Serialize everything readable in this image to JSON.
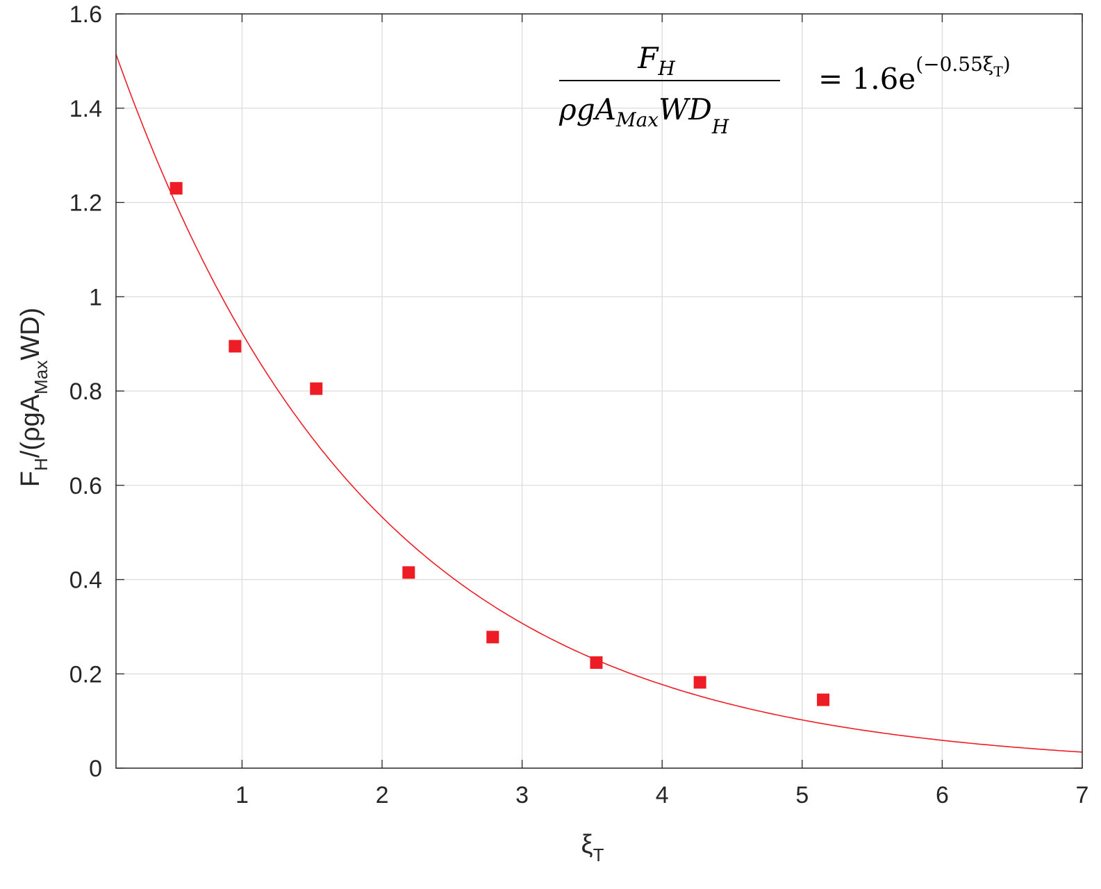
{
  "chart_data": {
    "type": "scatter",
    "title": "",
    "xlabel": {
      "main": "ξ",
      "sub": "T"
    },
    "ylabel": {
      "p1": "F",
      "sub1": "H",
      "p2": "/(ρgA",
      "sub2": "Max",
      "p3": "WD)"
    },
    "xlim": [
      0.1,
      7
    ],
    "ylim": [
      0,
      1.6
    ],
    "xticks": [
      1,
      2,
      3,
      4,
      5,
      6,
      7
    ],
    "xtick_labels": [
      "1",
      "2",
      "3",
      "4",
      "5",
      "6",
      "7"
    ],
    "yticks": [
      0,
      0.2,
      0.4,
      0.6,
      0.8,
      1,
      1.2,
      1.4,
      1.6
    ],
    "ytick_labels": [
      "0",
      "0.2",
      "0.4",
      "0.6",
      "0.8",
      "1",
      "1.2",
      "1.4",
      "1.6"
    ],
    "grid": true,
    "series": [
      {
        "kind": "scatter",
        "marker": "square",
        "color": "#ee1c25",
        "x": [
          0.53,
          0.95,
          1.53,
          2.19,
          2.79,
          3.53,
          4.27,
          5.15
        ],
        "y": [
          1.23,
          0.895,
          0.805,
          0.415,
          0.278,
          0.224,
          0.182,
          0.145
        ]
      },
      {
        "kind": "fit",
        "color": "#ee1c25",
        "coefficient": 1.6,
        "rate": -0.55,
        "x_range": [
          0.1,
          7
        ]
      }
    ],
    "annotation": {
      "numerator": {
        "base": "F",
        "sub": "H"
      },
      "denominator": {
        "p1": "ρgA",
        "sub1": "Max",
        "p2": "WD",
        "sub2": "H"
      },
      "rhs": {
        "text": "= 1.6e",
        "exp": "(−0.55ξ",
        "exp_sub": "T",
        "exp_close": ")"
      }
    }
  }
}
